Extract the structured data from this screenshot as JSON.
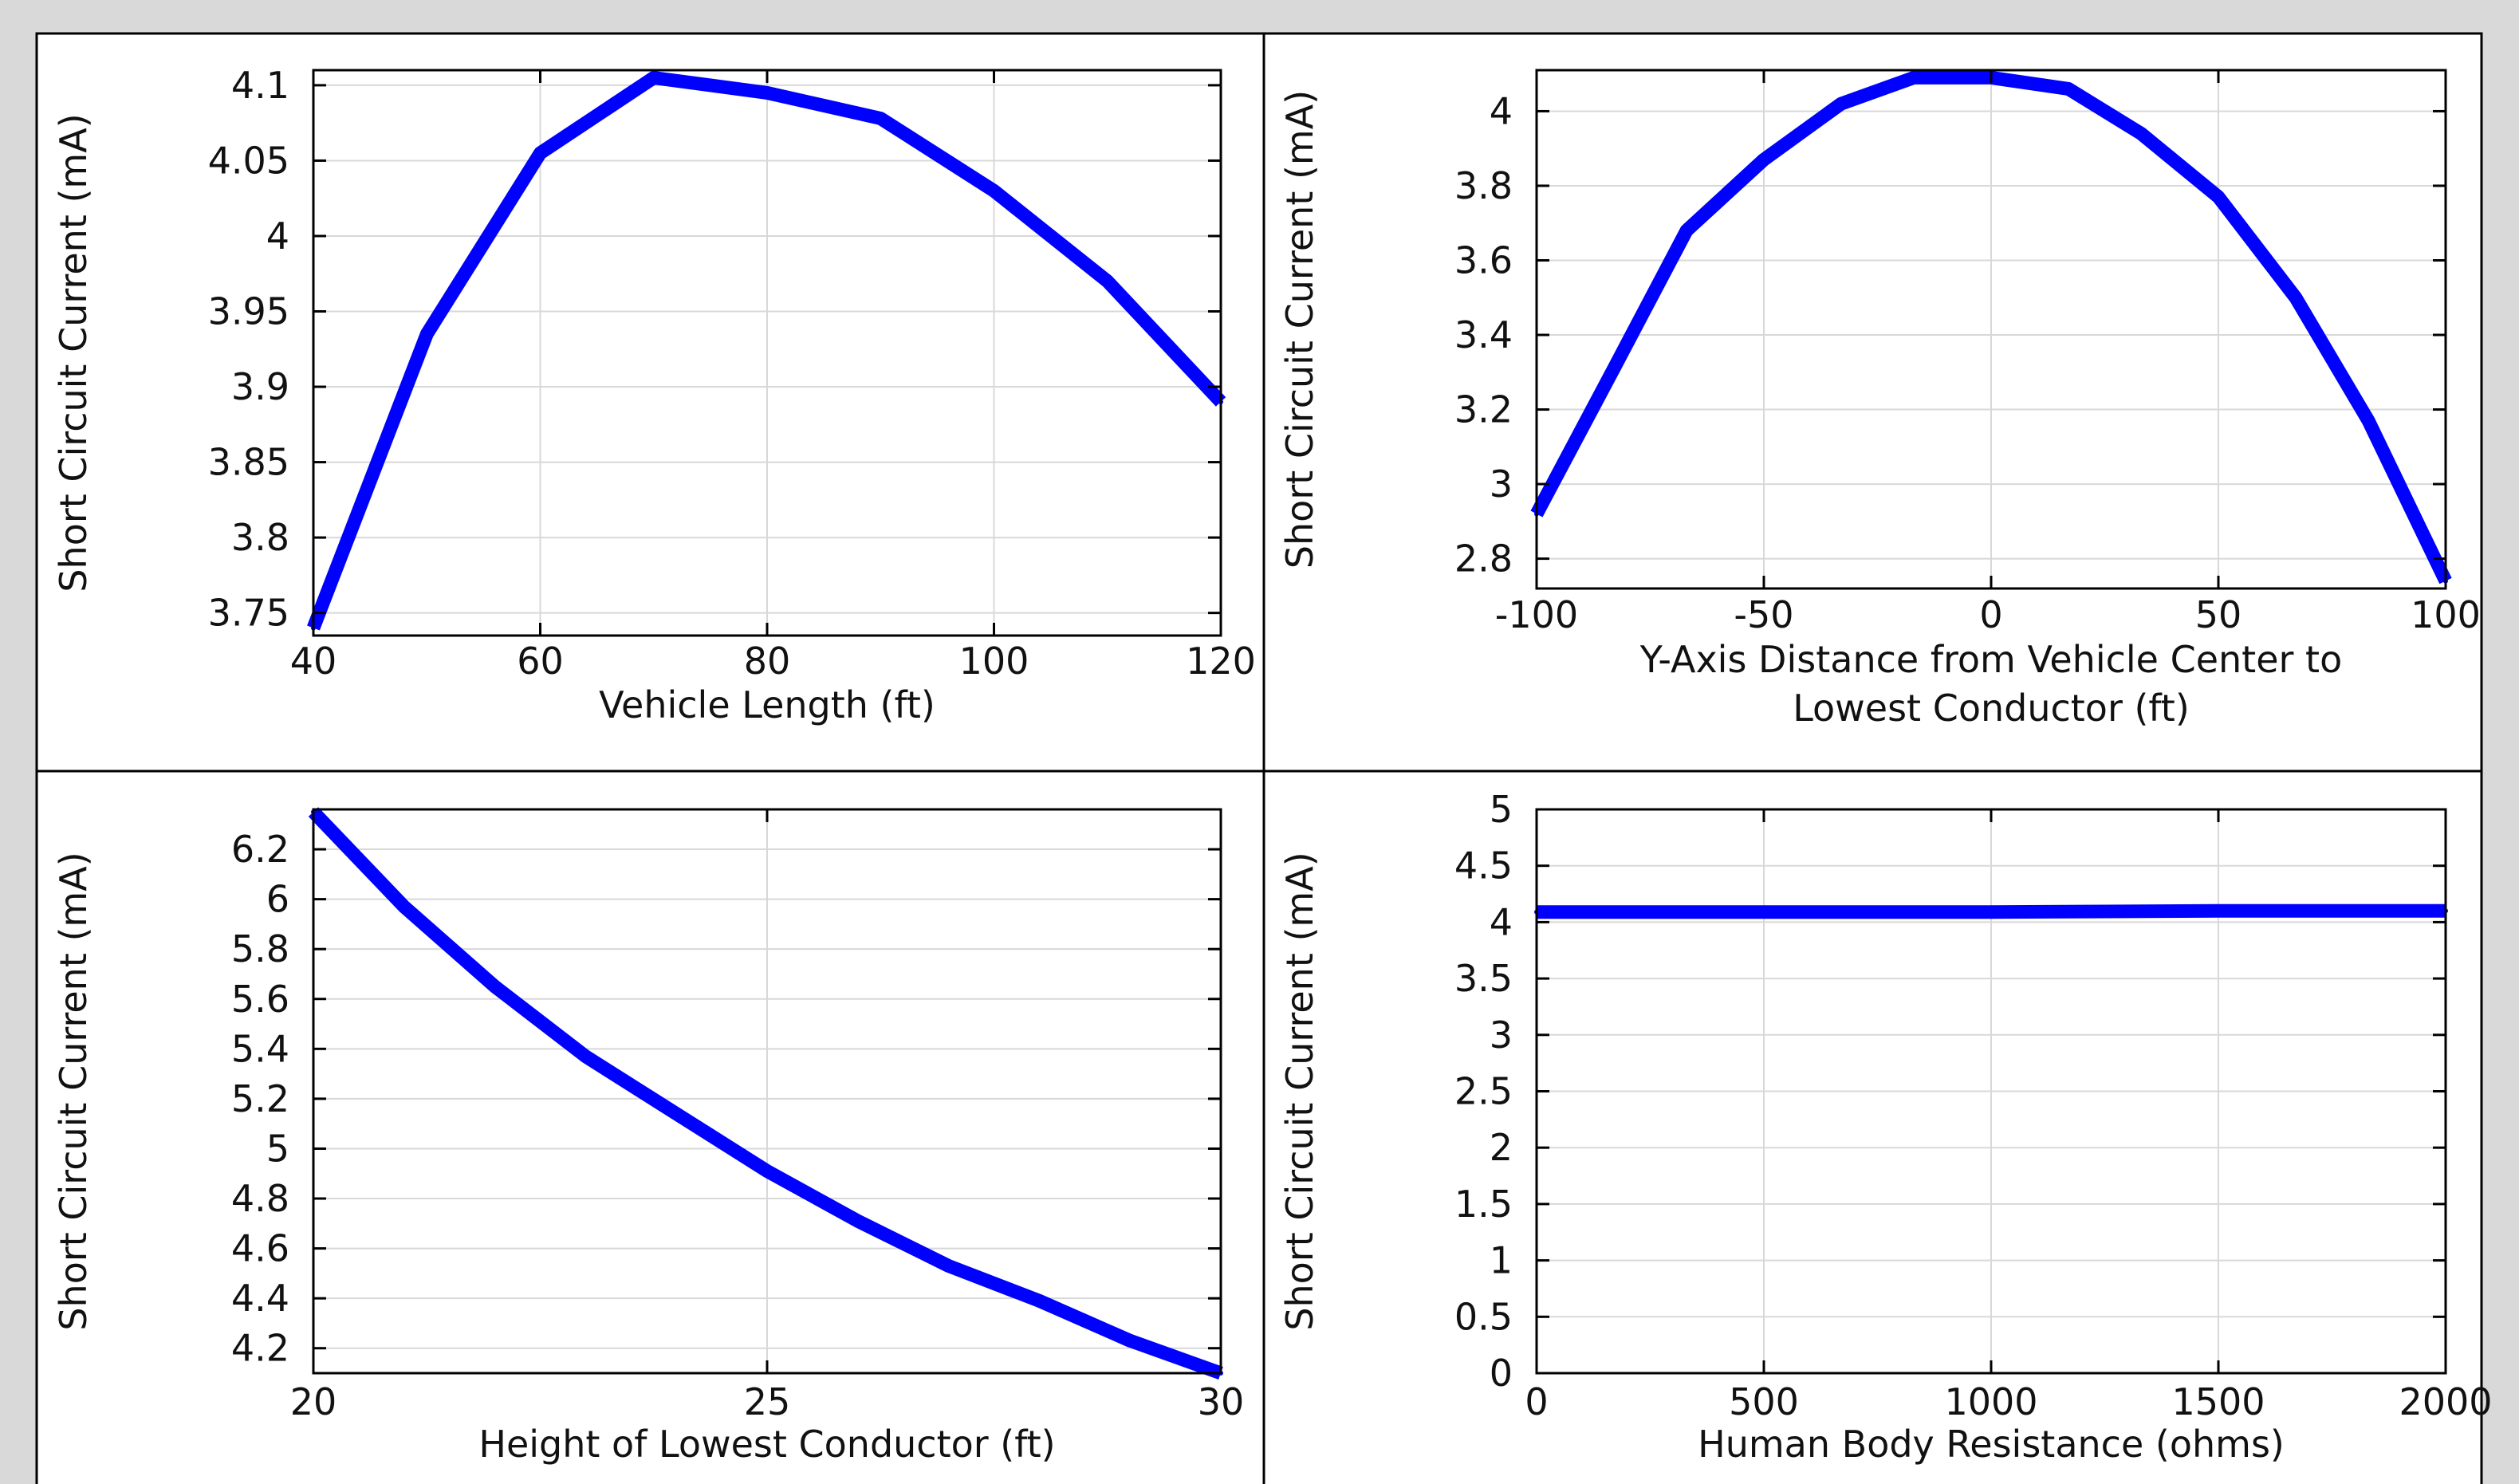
{
  "chart_data": [
    {
      "type": "line",
      "xlabel": [
        "Vehicle Length (ft)"
      ],
      "ylabel": "Short Circuit Current (mA)",
      "xlim": [
        40,
        120
      ],
      "ylim": [
        3.735,
        4.11
      ],
      "xticks": [
        40,
        60,
        80,
        100,
        120
      ],
      "yticks": [
        3.75,
        3.8,
        3.85,
        3.9,
        3.95,
        4,
        4.05,
        4.1
      ],
      "xtick_labels": [
        "40",
        "60",
        "80",
        "100",
        "120"
      ],
      "ytick_labels": [
        "3.75",
        "3.8",
        "3.85",
        "3.9",
        "3.95",
        "4",
        "4.05",
        "4.1"
      ],
      "grid": true,
      "color": "#0000ff",
      "series": [
        {
          "x": [
            40,
            50,
            60,
            70,
            80,
            90,
            100,
            110,
            120
          ],
          "y": [
            3.74,
            3.935,
            4.055,
            4.105,
            4.095,
            4.078,
            4.03,
            3.97,
            3.89
          ]
        }
      ]
    },
    {
      "type": "line",
      "xlabel": [
        "Y-Axis Distance from Vehicle Center to",
        "Lowest Conductor (ft)"
      ],
      "ylabel": "Short Circuit Current (mA)",
      "xlim": [
        -100,
        100
      ],
      "ylim": [
        2.72,
        4.11
      ],
      "xticks": [
        -100,
        -50,
        0,
        50,
        100
      ],
      "yticks": [
        2.8,
        3,
        3.2,
        3.4,
        3.6,
        3.8,
        4
      ],
      "xtick_labels": [
        "-100",
        "-50",
        "0",
        "50",
        "100"
      ],
      "ytick_labels": [
        "2.8",
        "3",
        "3.2",
        "3.4",
        "3.6",
        "3.8",
        "4"
      ],
      "grid": true,
      "color": "#0000ff",
      "series": [
        {
          "x": [
            -100,
            -83,
            -67,
            -50,
            -33,
            -17,
            0,
            17,
            33,
            50,
            67,
            83,
            100
          ],
          "y": [
            2.92,
            3.31,
            3.68,
            3.87,
            4.02,
            4.09,
            4.09,
            4.06,
            3.94,
            3.77,
            3.5,
            3.17,
            2.74
          ]
        }
      ]
    },
    {
      "type": "line",
      "xlabel": [
        "Height of Lowest Conductor (ft)"
      ],
      "ylabel": "Short Circuit Current (mA)",
      "xlim": [
        20,
        30
      ],
      "ylim": [
        4.1,
        6.36
      ],
      "xticks": [
        20,
        25,
        30
      ],
      "yticks": [
        4.2,
        4.4,
        4.6,
        4.8,
        5,
        5.2,
        5.4,
        5.6,
        5.8,
        6,
        6.2
      ],
      "xtick_labels": [
        "20",
        "25",
        "30"
      ],
      "ytick_labels": [
        "4.2",
        "4.4",
        "4.6",
        "4.8",
        "5",
        "5.2",
        "5.4",
        "5.6",
        "5.8",
        "6",
        "6.2"
      ],
      "grid": true,
      "color": "#0000ff",
      "series": [
        {
          "x": [
            20,
            21,
            22,
            23,
            24,
            25,
            26,
            27,
            28,
            29,
            30
          ],
          "y": [
            6.35,
            5.97,
            5.65,
            5.37,
            5.14,
            4.91,
            4.71,
            4.53,
            4.39,
            4.23,
            4.1
          ]
        }
      ]
    },
    {
      "type": "line",
      "xlabel": [
        "Human Body Resistance (ohms)"
      ],
      "ylabel": "Short Circuit Current (mA)",
      "xlim": [
        0,
        2000
      ],
      "ylim": [
        0,
        5
      ],
      "xticks": [
        0,
        500,
        1000,
        1500,
        2000
      ],
      "yticks": [
        0,
        0.5,
        1,
        1.5,
        2,
        2.5,
        3,
        3.5,
        4,
        4.5,
        5
      ],
      "xtick_labels": [
        "0",
        "500",
        "1000",
        "1500",
        "2000"
      ],
      "ytick_labels": [
        "0",
        "0.5",
        "1",
        "1.5",
        "2",
        "2.5",
        "3",
        "3.5",
        "4",
        "4.5",
        "5"
      ],
      "grid": true,
      "color": "#0000ff",
      "series": [
        {
          "x": [
            0,
            500,
            1000,
            1500,
            2000
          ],
          "y": [
            4.09,
            4.09,
            4.09,
            4.1,
            4.1
          ]
        }
      ]
    }
  ]
}
